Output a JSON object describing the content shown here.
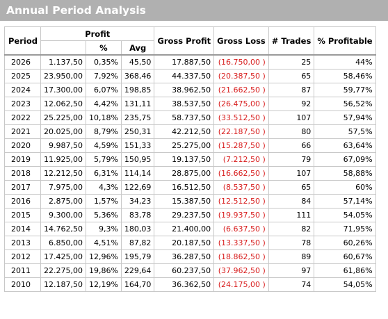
{
  "title": "Annual Period Analysis",
  "headers": {
    "period": "Period",
    "profit": "Profit",
    "profit_pct": "%",
    "profit_avg": "Avg",
    "gross_profit": "Gross Profit",
    "gross_loss": "Gross Loss",
    "trades": "# Trades",
    "pct_profitable": "% Profitable"
  },
  "rows": [
    {
      "period": "2026",
      "profit": "1.137,50",
      "pct": "0,35%",
      "avg": "45,50",
      "gross_profit": "17.887,50",
      "gross_loss": "(16.750,00 )",
      "trades": "25",
      "pct_profitable": "44%"
    },
    {
      "period": "2025",
      "profit": "23.950,00",
      "pct": "7,92%",
      "avg": "368,46",
      "gross_profit": "44.337,50",
      "gross_loss": "(20.387,50 )",
      "trades": "65",
      "pct_profitable": "58,46%"
    },
    {
      "period": "2024",
      "profit": "17.300,00",
      "pct": "6,07%",
      "avg": "198,85",
      "gross_profit": "38.962,50",
      "gross_loss": "(21.662,50 )",
      "trades": "87",
      "pct_profitable": "59,77%"
    },
    {
      "period": "2023",
      "profit": "12.062,50",
      "pct": "4,42%",
      "avg": "131,11",
      "gross_profit": "38.537,50",
      "gross_loss": "(26.475,00 )",
      "trades": "92",
      "pct_profitable": "56,52%"
    },
    {
      "period": "2022",
      "profit": "25.225,00",
      "pct": "10,18%",
      "avg": "235,75",
      "gross_profit": "58.737,50",
      "gross_loss": "(33.512,50 )",
      "trades": "107",
      "pct_profitable": "57,94%"
    },
    {
      "period": "2021",
      "profit": "20.025,00",
      "pct": "8,79%",
      "avg": "250,31",
      "gross_profit": "42.212,50",
      "gross_loss": "(22.187,50 )",
      "trades": "80",
      "pct_profitable": "57,5%"
    },
    {
      "period": "2020",
      "profit": "9.987,50",
      "pct": "4,59%",
      "avg": "151,33",
      "gross_profit": "25.275,00",
      "gross_loss": "(15.287,50 )",
      "trades": "66",
      "pct_profitable": "63,64%"
    },
    {
      "period": "2019",
      "profit": "11.925,00",
      "pct": "5,79%",
      "avg": "150,95",
      "gross_profit": "19.137,50",
      "gross_loss": "(7.212,50 )",
      "trades": "79",
      "pct_profitable": "67,09%"
    },
    {
      "period": "2018",
      "profit": "12.212,50",
      "pct": "6,31%",
      "avg": "114,14",
      "gross_profit": "28.875,00",
      "gross_loss": "(16.662,50 )",
      "trades": "107",
      "pct_profitable": "58,88%"
    },
    {
      "period": "2017",
      "profit": "7.975,00",
      "pct": "4,3%",
      "avg": "122,69",
      "gross_profit": "16.512,50",
      "gross_loss": "(8.537,50 )",
      "trades": "65",
      "pct_profitable": "60%"
    },
    {
      "period": "2016",
      "profit": "2.875,00",
      "pct": "1,57%",
      "avg": "34,23",
      "gross_profit": "15.387,50",
      "gross_loss": "(12.512,50 )",
      "trades": "84",
      "pct_profitable": "57,14%"
    },
    {
      "period": "2015",
      "profit": "9.300,00",
      "pct": "5,36%",
      "avg": "83,78",
      "gross_profit": "29.237,50",
      "gross_loss": "(19.937,50 )",
      "trades": "111",
      "pct_profitable": "54,05%"
    },
    {
      "period": "2014",
      "profit": "14.762,50",
      "pct": "9,3%",
      "avg": "180,03",
      "gross_profit": "21.400,00",
      "gross_loss": "(6.637,50 )",
      "trades": "82",
      "pct_profitable": "71,95%"
    },
    {
      "period": "2013",
      "profit": "6.850,00",
      "pct": "4,51%",
      "avg": "87,82",
      "gross_profit": "20.187,50",
      "gross_loss": "(13.337,50 )",
      "trades": "78",
      "pct_profitable": "60,26%"
    },
    {
      "period": "2012",
      "profit": "17.425,00",
      "pct": "12,96%",
      "avg": "195,79",
      "gross_profit": "36.287,50",
      "gross_loss": "(18.862,50 )",
      "trades": "89",
      "pct_profitable": "60,67%"
    },
    {
      "period": "2011",
      "profit": "22.275,00",
      "pct": "19,86%",
      "avg": "229,64",
      "gross_profit": "60.237,50",
      "gross_loss": "(37.962,50 )",
      "trades": "97",
      "pct_profitable": "61,86%"
    },
    {
      "period": "2010",
      "profit": "12.187,50",
      "pct": "12,19%",
      "avg": "164,70",
      "gross_profit": "36.362,50",
      "gross_loss": "(24.175,00 )",
      "trades": "74",
      "pct_profitable": "54,05%"
    }
  ],
  "colors": {
    "title_bar_bg": "#b0b0b0",
    "title_text": "#ffffff",
    "loss_text": "#d81c1c",
    "grid_line": "#c8c8c8"
  }
}
